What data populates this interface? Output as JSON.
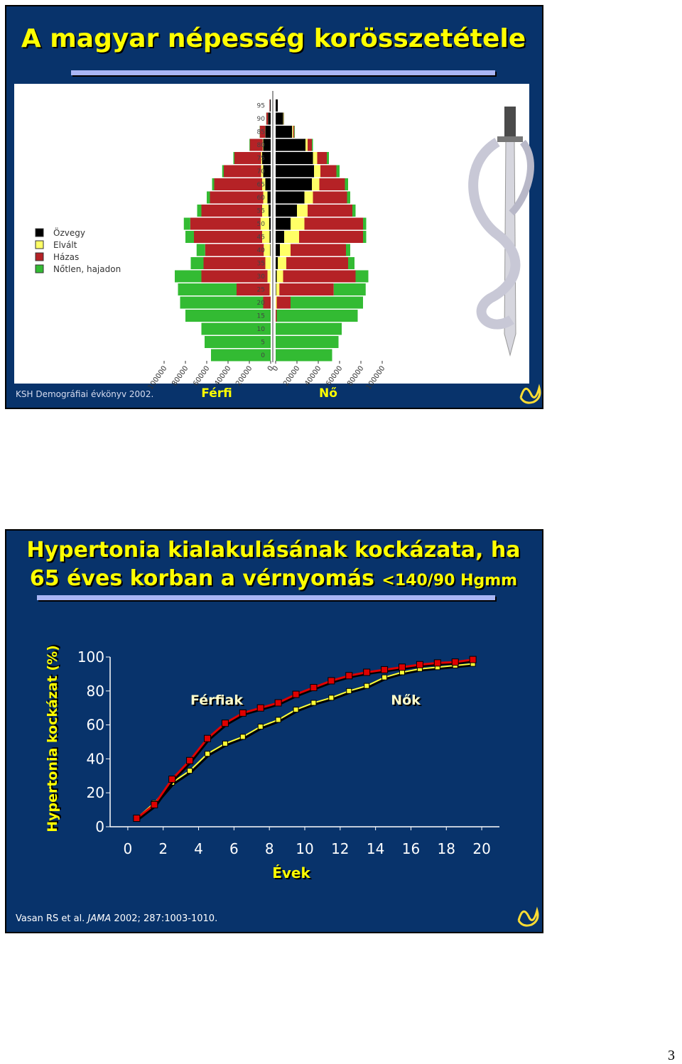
{
  "chart_data": [
    {
      "type": "pyramid",
      "title": "A magyar népesség korösszetétele",
      "source": "KSH Demográfiai évkönyv 2002.",
      "left_label": "Férfi",
      "right_label": "Nő",
      "categories": [
        "0",
        "5",
        "10",
        "15",
        "20",
        "25",
        "30",
        "35",
        "40",
        "45",
        "50",
        "55",
        "60",
        "65",
        "70",
        "75",
        "80",
        "85",
        "90",
        "95"
      ],
      "xlim": [
        0,
        100000
      ],
      "xticks": [
        0,
        20000,
        40000,
        60000,
        80000,
        100000
      ],
      "series": [
        {
          "name": "Özvegy",
          "color": "#000000",
          "male": [
            0,
            0,
            0,
            0,
            0,
            0,
            0,
            0,
            500,
            1000,
            1500,
            2000,
            3000,
            5000,
            7000,
            8000,
            7000,
            5000,
            2500,
            800
          ],
          "female": [
            0,
            0,
            0,
            0,
            0,
            500,
            1000,
            2000,
            4000,
            8000,
            14000,
            20000,
            27000,
            34000,
            36000,
            35000,
            28000,
            15500,
            7000,
            2000
          ]
        },
        {
          "name": "Elvált",
          "color": "#ffff66",
          "male": [
            0,
            0,
            0,
            0,
            0,
            1000,
            3000,
            5000,
            6000,
            7000,
            8000,
            6000,
            4000,
            3000,
            2000,
            1000,
            500,
            200,
            100,
            0
          ],
          "female": [
            0,
            0,
            0,
            0,
            1000,
            3000,
            6000,
            8000,
            10000,
            14000,
            13000,
            10000,
            8000,
            7000,
            6000,
            4000,
            2000,
            1000,
            300,
            0
          ]
        },
        {
          "name": "Házas",
          "color": "#b52226",
          "male": [
            0,
            0,
            0,
            0,
            7000,
            31000,
            62000,
            58000,
            55000,
            64000,
            66000,
            57000,
            50000,
            45000,
            35000,
            25000,
            12000,
            5000,
            1500,
            300
          ],
          "female": [
            0,
            0,
            0,
            1000,
            13000,
            51000,
            68000,
            58000,
            52000,
            60000,
            55000,
            42000,
            32000,
            24000,
            15000,
            9000,
            4000,
            1000,
            300,
            0
          ]
        },
        {
          "name": "Nőtlen, hajadon",
          "color": "#33bb33",
          "male": [
            56000,
            62000,
            65000,
            80000,
            78000,
            55000,
            25000,
            12000,
            8000,
            8000,
            6000,
            4000,
            3000,
            2000,
            1500,
            1000,
            500,
            200,
            100,
            0
          ],
          "female": [
            53000,
            59000,
            62000,
            76000,
            68000,
            30000,
            12000,
            6000,
            4000,
            3000,
            3000,
            3000,
            3000,
            3000,
            3000,
            2000,
            1000,
            500,
            200,
            0
          ]
        }
      ]
    },
    {
      "type": "line",
      "title_lines": [
        "Hypertonia kialakulásának kockázata, ha",
        "65 éves korban a vérnyomás "
      ],
      "title_note": "<140/90 Hgmm",
      "source": [
        "Vasan RS et al. ",
        "JAMA",
        " 2002; 287:1003-1010."
      ],
      "xlabel": "Évek",
      "ylabel": "Hypertonia kockázat (%)",
      "x": [
        0.5,
        1.5,
        2.5,
        3.5,
        4.5,
        5.5,
        6.5,
        7.5,
        8.5,
        9.5,
        10.5,
        11.5,
        12.5,
        13.5,
        14.5,
        15.5,
        16.5,
        17.5,
        18.5,
        19.5
      ],
      "series": [
        {
          "name": "Férfiak",
          "color": "#e00000",
          "values": [
            5,
            13,
            28,
            39,
            52,
            61,
            67,
            70,
            73,
            78,
            82,
            86,
            89,
            91,
            92.5,
            94,
            95.5,
            96.5,
            97,
            98.5
          ]
        },
        {
          "name": "Nők",
          "color": "#ffff33",
          "values": [
            5,
            14,
            26,
            33,
            43,
            49,
            53,
            59,
            63,
            69,
            73,
            76,
            80,
            83,
            88,
            91,
            93,
            94,
            95,
            96
          ]
        }
      ],
      "xlim": [
        -1,
        21
      ],
      "xticks": [
        0,
        2,
        4,
        6,
        8,
        10,
        12,
        14,
        16,
        18,
        20
      ],
      "ylim": [
        0,
        100
      ],
      "yticks": [
        0,
        20,
        40,
        60,
        80,
        100
      ]
    }
  ],
  "page_number": "3"
}
